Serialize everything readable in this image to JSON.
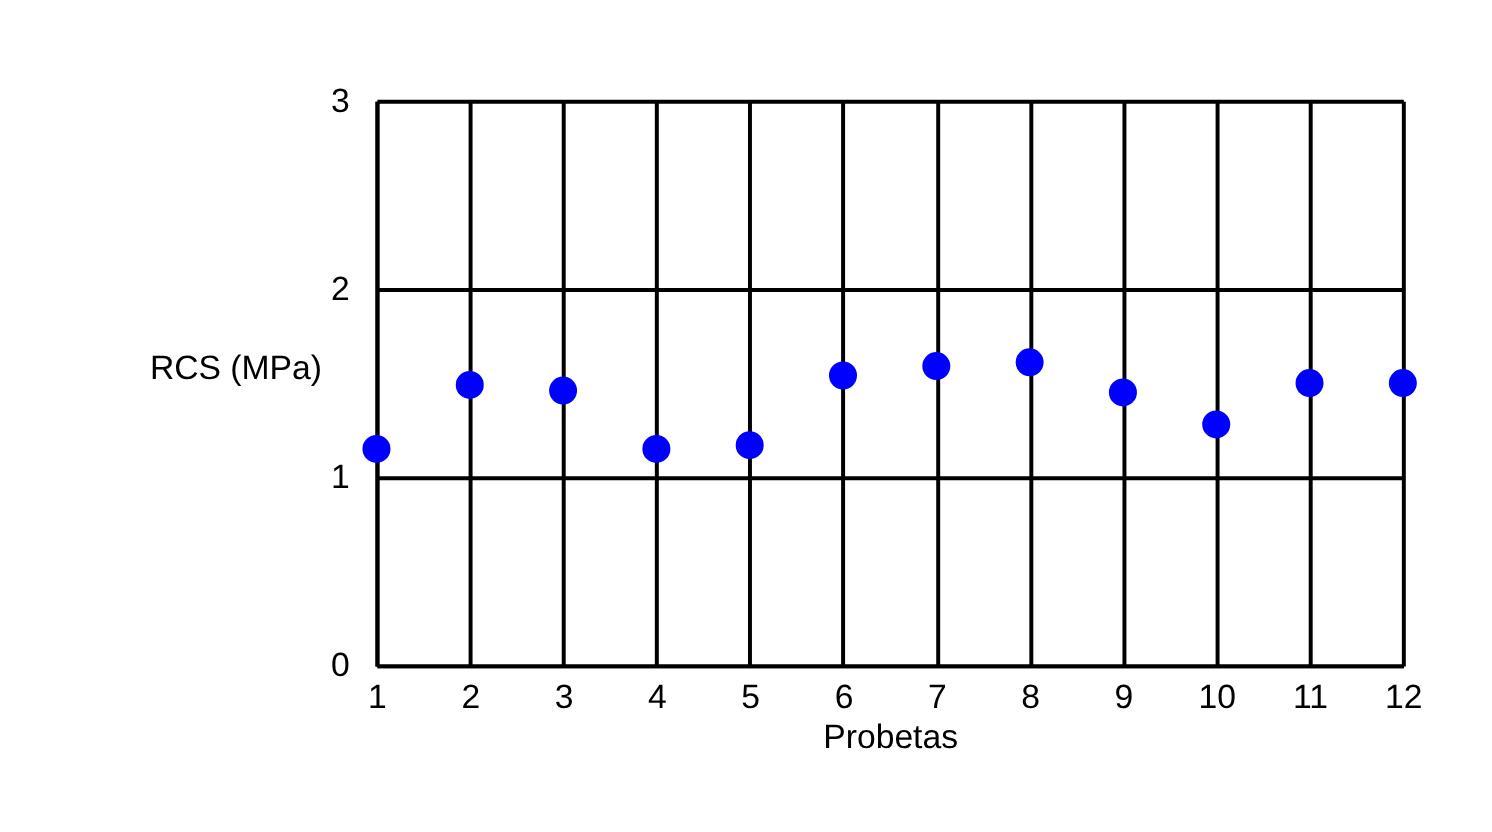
{
  "chart_data": {
    "type": "scatter",
    "xlabel": "Probetas",
    "ylabel": "RCS (MPa)",
    "x": [
      1,
      2,
      3,
      4,
      5,
      6,
      7,
      8,
      9,
      10,
      11,
      12
    ],
    "series": [
      {
        "color": "#0000ff",
        "values": [
          1.15,
          1.49,
          1.46,
          1.15,
          1.17,
          1.54,
          1.59,
          1.61,
          1.45,
          1.28,
          1.5,
          1.5
        ]
      }
    ],
    "xlim": [
      1,
      12
    ],
    "xticks": [
      1,
      2,
      3,
      4,
      5,
      6,
      7,
      8,
      9,
      10,
      11,
      12
    ],
    "ylim": [
      0,
      3
    ],
    "yticks": [
      0,
      1,
      2,
      3
    ],
    "grid": true,
    "marker": "circle",
    "legend": false
  }
}
